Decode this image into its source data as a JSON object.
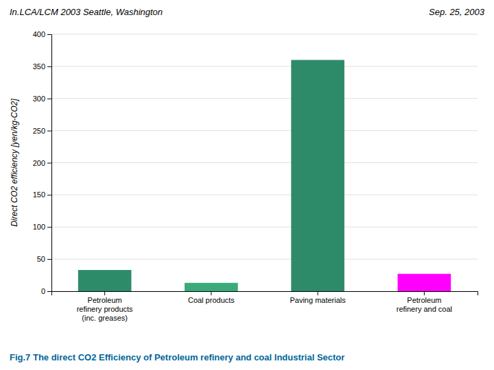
{
  "chart_data": {
    "type": "bar",
    "categories": [
      "Petroleum\nrefinery products\n(inc. greases)",
      "Coal products",
      "Paving materials",
      "Petroleum\nrefinery and coal"
    ],
    "values": [
      33,
      13,
      360,
      27
    ],
    "colors": [
      "#2e8b6a",
      "#3aaa7a",
      "#2e8b6a",
      "#ff00ff"
    ],
    "ylabel": "Direct CO2 efficiency [yen/kg-CO2]",
    "ylim": [
      0,
      400
    ],
    "yticks": [
      0,
      50,
      100,
      150,
      200,
      250,
      300,
      350,
      400
    ],
    "grid": true,
    "annotations": [
      "In.LCA/LCM 2003  Seattle, Washington",
      "Sep. 25, 2003",
      "Fig.7 The direct CO2 Efficiency of Petroleum refinery and coal Industrial Sector"
    ]
  }
}
